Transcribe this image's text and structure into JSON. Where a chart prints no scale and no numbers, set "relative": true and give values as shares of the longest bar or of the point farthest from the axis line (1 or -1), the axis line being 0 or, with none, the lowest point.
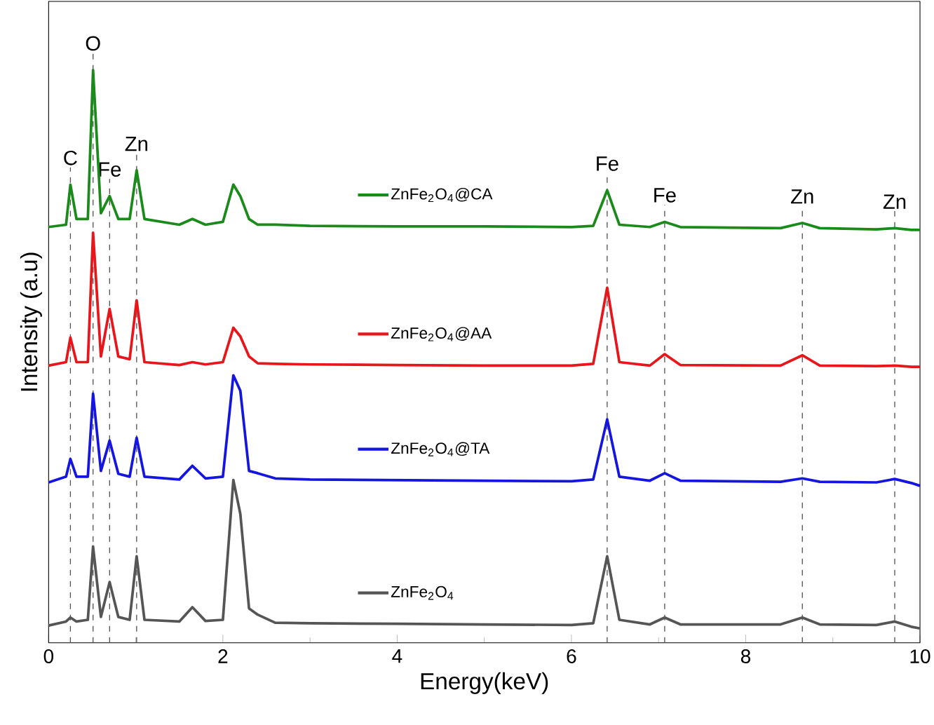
{
  "chart_data": {
    "type": "line",
    "relative": true,
    "xlabel": "Energy(keV)",
    "ylabel": "Intensity (a.u)",
    "xlim": [
      0,
      10
    ],
    "xticks": [
      0,
      2,
      4,
      6,
      8,
      10
    ],
    "tick_labels": "x",
    "x": [
      0,
      0.2,
      0.25,
      0.32,
      0.45,
      0.51,
      0.6,
      0.7,
      0.8,
      0.93,
      1.01,
      1.1,
      1.5,
      1.65,
      1.8,
      2.0,
      2.12,
      2.2,
      2.3,
      2.4,
      2.6,
      3,
      4,
      5,
      6,
      6.25,
      6.41,
      6.55,
      6.9,
      7.07,
      7.25,
      8.4,
      8.65,
      8.85,
      9.5,
      9.71,
      9.9,
      10
    ],
    "series": [
      {
        "name": "ZnFe$_{2}$O$_{4}$@CA",
        "color": "#1a8a1a",
        "values": [
          0.726,
          0.73,
          0.8,
          0.74,
          0.74,
          1.0,
          0.75,
          0.78,
          0.74,
          0.74,
          0.825,
          0.74,
          0.73,
          0.74,
          0.73,
          0.735,
          0.8,
          0.78,
          0.74,
          0.73,
          0.73,
          0.728,
          0.727,
          0.727,
          0.726,
          0.728,
          0.79,
          0.73,
          0.726,
          0.735,
          0.726,
          0.724,
          0.733,
          0.724,
          0.722,
          0.724,
          0.721,
          0.721
        ]
      },
      {
        "name": "ZnFe$_{2}$O$_{4}$@AA",
        "color": "#e8161b",
        "values": [
          0.484,
          0.49,
          0.533,
          0.49,
          0.49,
          0.716,
          0.5,
          0.583,
          0.5,
          0.495,
          0.598,
          0.49,
          0.485,
          0.49,
          0.486,
          0.49,
          0.55,
          0.535,
          0.5,
          0.488,
          0.487,
          0.486,
          0.485,
          0.484,
          0.484,
          0.487,
          0.62,
          0.49,
          0.484,
          0.504,
          0.485,
          0.484,
          0.502,
          0.484,
          0.483,
          0.484,
          0.482,
          0.482
        ]
      },
      {
        "name": "ZnFe$_{2}$O$_{4}$@TA",
        "color": "#1515e0",
        "values": [
          0.28,
          0.29,
          0.321,
          0.29,
          0.29,
          0.435,
          0.3,
          0.353,
          0.295,
          0.29,
          0.358,
          0.29,
          0.285,
          0.309,
          0.287,
          0.29,
          0.467,
          0.44,
          0.3,
          0.296,
          0.287,
          0.285,
          0.284,
          0.283,
          0.282,
          0.285,
          0.39,
          0.29,
          0.283,
          0.296,
          0.283,
          0.281,
          0.287,
          0.281,
          0.28,
          0.286,
          0.279,
          0.274
        ]
      },
      {
        "name": "ZnFe$_{2}$O$_{4}$",
        "color": "#555555",
        "values": [
          0.03,
          0.037,
          0.044,
          0.037,
          0.04,
          0.168,
          0.045,
          0.106,
          0.045,
          0.04,
          0.151,
          0.04,
          0.037,
          0.062,
          0.038,
          0.04,
          0.284,
          0.225,
          0.06,
          0.049,
          0.035,
          0.034,
          0.033,
          0.032,
          0.031,
          0.034,
          0.151,
          0.04,
          0.032,
          0.044,
          0.032,
          0.032,
          0.044,
          0.032,
          0.031,
          0.037,
          0.028,
          0.025
        ]
      }
    ],
    "ref_lines": [
      {
        "axis": "x",
        "value": 0.25,
        "label": "C",
        "color": "#555555",
        "line_style": "dashed"
      },
      {
        "axis": "x",
        "value": 0.51,
        "label": "O",
        "color": "#555555",
        "line_style": "dashed"
      },
      {
        "axis": "x",
        "value": 0.7,
        "label": "Fe",
        "color": "#555555",
        "line_style": "dashed"
      },
      {
        "axis": "x",
        "value": 1.01,
        "label": "Zn",
        "color": "#555555",
        "line_style": "dashed"
      },
      {
        "axis": "x",
        "value": 6.41,
        "label": "Fe",
        "color": "#555555",
        "line_style": "dashed"
      },
      {
        "axis": "x",
        "value": 7.07,
        "label": "Fe",
        "color": "#555555",
        "line_style": "dashed"
      },
      {
        "axis": "x",
        "value": 8.65,
        "label": "Zn",
        "color": "#555555",
        "line_style": "dashed"
      },
      {
        "axis": "x",
        "value": 9.71,
        "label": "Zn",
        "color": "#555555",
        "line_style": "dashed"
      }
    ],
    "grid": false,
    "legend": "center"
  }
}
